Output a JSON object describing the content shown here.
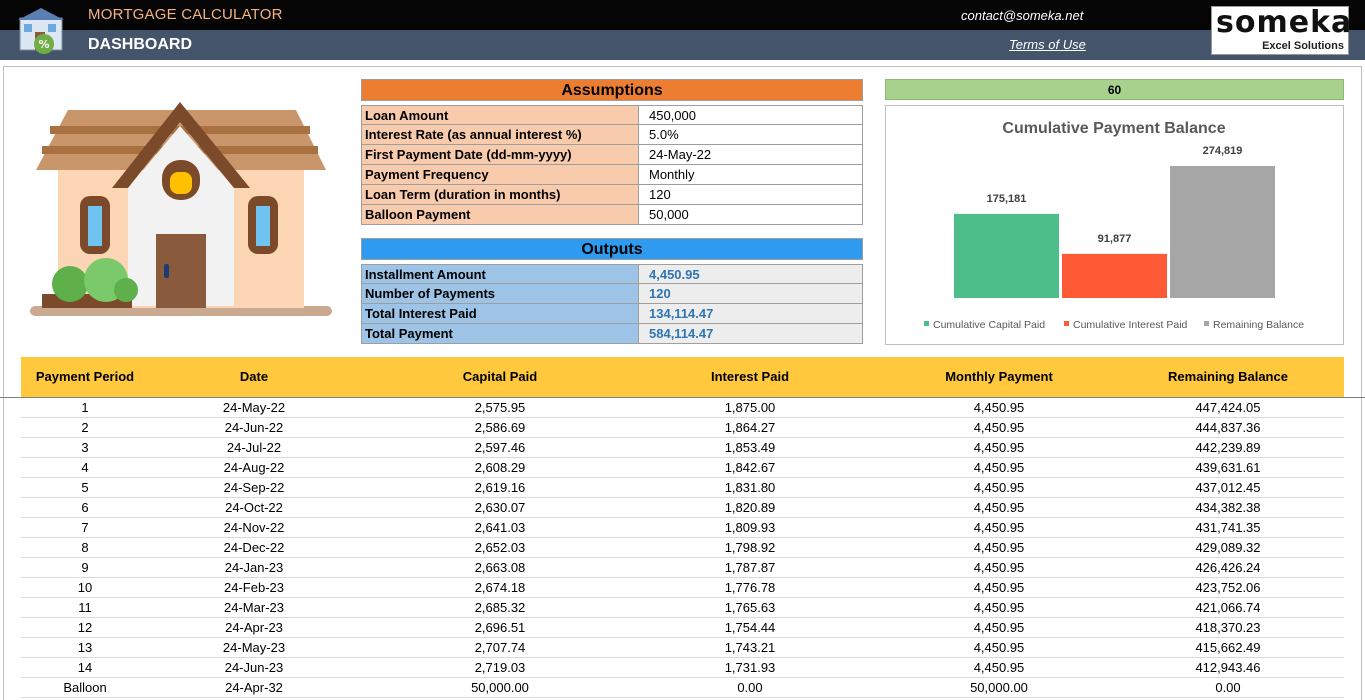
{
  "header": {
    "app_title": "MORTGAGE CALCULATOR",
    "page_title": "DASHBOARD",
    "contact": "contact@someka.net",
    "terms": "Terms of Use",
    "logo_word": "someka",
    "logo_sub": "Excel Solutions",
    "icon": "house-percent-icon"
  },
  "illustration": "house-illustration",
  "assumptions": {
    "title": "Assumptions",
    "rows": [
      {
        "label": "Loan Amount",
        "value": "450,000"
      },
      {
        "label": "Interest Rate (as annual interest %)",
        "value": "5.0%"
      },
      {
        "label": "First Payment Date (dd-mm-yyyy)",
        "value": "24-May-22"
      },
      {
        "label": "Payment Frequency",
        "value": "Monthly"
      },
      {
        "label": "Loan Term (duration in months)",
        "value": "120"
      },
      {
        "label": "Balloon Payment",
        "value": "50,000"
      }
    ]
  },
  "outputs": {
    "title": "Outputs",
    "rows": [
      {
        "label": "Installment Amount",
        "value": "4,450.95"
      },
      {
        "label": "Number of Payments",
        "value": "120"
      },
      {
        "label": "Total Interest Paid",
        "value": "134,114.47"
      },
      {
        "label": "Total Payment",
        "value": "584,114.47"
      }
    ]
  },
  "chart_top_value": "60",
  "chart_data": {
    "type": "bar",
    "title": "Cumulative Payment Balance",
    "categories": [
      "Cumulative Capital Paid",
      "Cumulative Interest Paid",
      "Remaining Balance"
    ],
    "values": [
      175181,
      91877,
      274819
    ],
    "labels": [
      "175,181",
      "91,877",
      "274,819"
    ],
    "colors": [
      "#4dbd8a",
      "#ff5a36",
      "#a6a6a6"
    ],
    "legend": "bottom",
    "grid": false
  },
  "table": {
    "columns": [
      "Payment Period",
      "Date",
      "Capital Paid",
      "Interest Paid",
      "Monthly Payment",
      "Remaining Balance"
    ],
    "rows": [
      [
        "1",
        "24-May-22",
        "2,575.95",
        "1,875.00",
        "4,450.95",
        "447,424.05"
      ],
      [
        "2",
        "24-Jun-22",
        "2,586.69",
        "1,864.27",
        "4,450.95",
        "444,837.36"
      ],
      [
        "3",
        "24-Jul-22",
        "2,597.46",
        "1,853.49",
        "4,450.95",
        "442,239.89"
      ],
      [
        "4",
        "24-Aug-22",
        "2,608.29",
        "1,842.67",
        "4,450.95",
        "439,631.61"
      ],
      [
        "5",
        "24-Sep-22",
        "2,619.16",
        "1,831.80",
        "4,450.95",
        "437,012.45"
      ],
      [
        "6",
        "24-Oct-22",
        "2,630.07",
        "1,820.89",
        "4,450.95",
        "434,382.38"
      ],
      [
        "7",
        "24-Nov-22",
        "2,641.03",
        "1,809.93",
        "4,450.95",
        "431,741.35"
      ],
      [
        "8",
        "24-Dec-22",
        "2,652.03",
        "1,798.92",
        "4,450.95",
        "429,089.32"
      ],
      [
        "9",
        "24-Jan-23",
        "2,663.08",
        "1,787.87",
        "4,450.95",
        "426,426.24"
      ],
      [
        "10",
        "24-Feb-23",
        "2,674.18",
        "1,776.78",
        "4,450.95",
        "423,752.06"
      ],
      [
        "11",
        "24-Mar-23",
        "2,685.32",
        "1,765.63",
        "4,450.95",
        "421,066.74"
      ],
      [
        "12",
        "24-Apr-23",
        "2,696.51",
        "1,754.44",
        "4,450.95",
        "418,370.23"
      ],
      [
        "13",
        "24-May-23",
        "2,707.74",
        "1,743.21",
        "4,450.95",
        "415,662.49"
      ],
      [
        "14",
        "24-Jun-23",
        "2,719.03",
        "1,731.93",
        "4,450.95",
        "412,943.46"
      ],
      [
        "Balloon",
        "24-Apr-32",
        "50,000.00",
        "0.00",
        "50,000.00",
        "0.00"
      ]
    ]
  }
}
